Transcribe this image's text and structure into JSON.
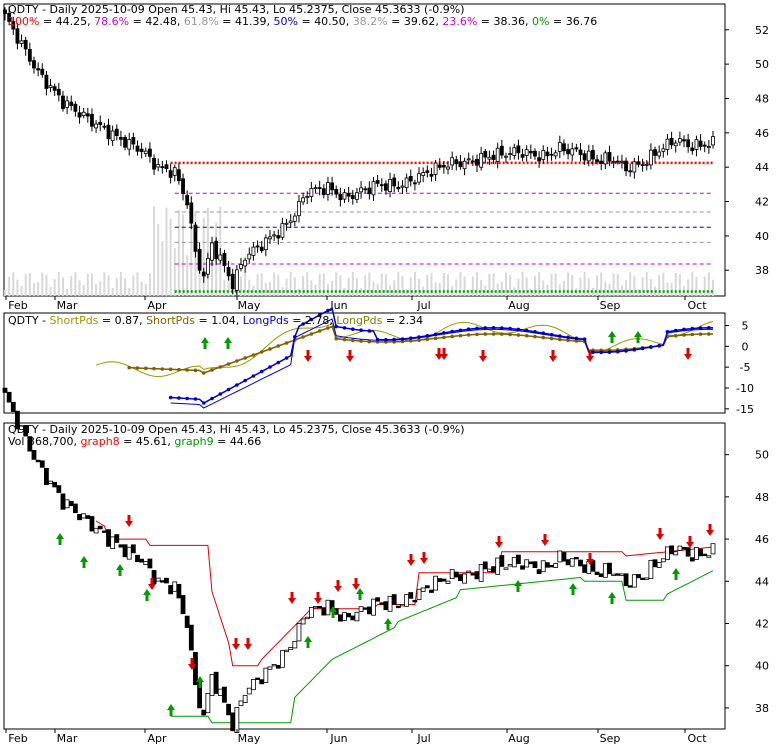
{
  "chart_data": [
    {
      "type": "candlestick",
      "title": "QDTY - Daily 2025-10-09 Open 45.43, Hi 45.43, Lo 45.2375, Close 45.3633 (-0.9%)",
      "months": [
        "Feb",
        "Mar",
        "Apr",
        "May",
        "Jun",
        "Jul",
        "Aug",
        "Sep",
        "Oct"
      ],
      "y_ticks": [
        "52",
        "50",
        "48",
        "46",
        "44",
        "42",
        "40",
        "38"
      ],
      "ylim": [
        36.5,
        53.5
      ],
      "fib_levels": [
        {
          "pct": "100%",
          "value": 44.25,
          "value_label": "44.25",
          "color": "#ff0000"
        },
        {
          "pct": "78.6%",
          "value": 42.48,
          "value_label": "42.48",
          "color": "#cc00cc"
        },
        {
          "pct": "61.8%",
          "value": 41.39,
          "value_label": "41.39",
          "color": "#999999"
        },
        {
          "pct": "50%",
          "value": 40.5,
          "value_label": "40.50",
          "color": "#0000cc"
        },
        {
          "pct": "38.2%",
          "value": 39.62,
          "value_label": "39.62",
          "color": "#999999"
        },
        {
          "pct": "23.6%",
          "value": 38.36,
          "value_label": "38.36",
          "color": "#cc00cc"
        },
        {
          "pct": "0%",
          "value": 36.76,
          "value_label": "36.76",
          "color": "#009900"
        }
      ]
    },
    {
      "type": "line",
      "title": "QDTY",
      "legend": [
        {
          "label": "ShortPds",
          "value": "0.87",
          "color": "#999900"
        },
        {
          "label": "ShortPds",
          "value": "1.04",
          "color": "#806000"
        },
        {
          "label": "LongPds",
          "value": "2.78",
          "color": "#0000cc"
        },
        {
          "label": "LongPds",
          "value": "2.34",
          "color": "#808000"
        }
      ],
      "y_ticks": [
        "5",
        "0",
        "-5",
        "-10",
        "-15"
      ],
      "ylim": [
        -16,
        8
      ]
    },
    {
      "type": "candlestick",
      "title": "QDTY - Daily 2025-10-09 Open 45.43, Hi 45.43, Lo 45.2375, Close 45.3633 (-0.9%)",
      "legend": [
        {
          "label": "Vol",
          "value": "368,700",
          "color": "#000000"
        },
        {
          "label": "graph8",
          "value": "45.61",
          "color": "#ff0000"
        },
        {
          "label": "graph9",
          "value": "44.66",
          "color": "#009900"
        }
      ],
      "months": [
        "Feb",
        "Mar",
        "Apr",
        "May",
        "Jun",
        "Jul",
        "Aug",
        "Sep",
        "Oct"
      ],
      "y_ticks": [
        "50",
        "48",
        "46",
        "44",
        "42",
        "40",
        "38"
      ],
      "ylim": [
        37,
        51.5
      ]
    }
  ]
}
